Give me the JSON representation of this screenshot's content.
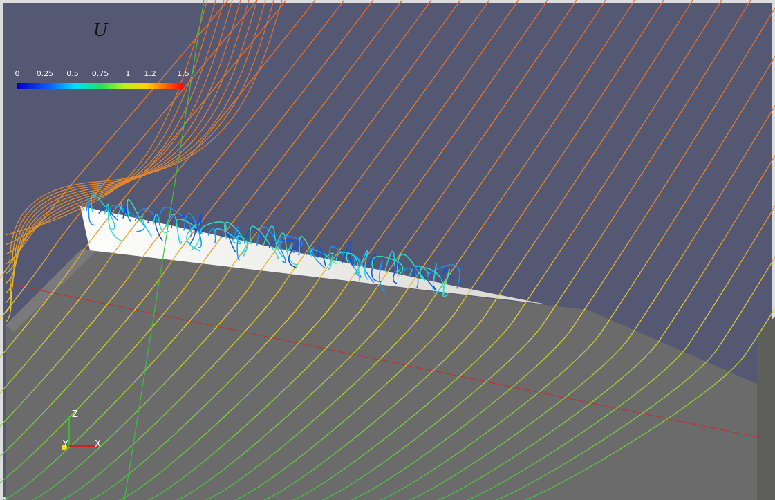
{
  "colorbar": {
    "title": "U",
    "ticks": [
      "0",
      "0.25",
      "0.5",
      "0.75",
      "1",
      "1.2",
      "1.5"
    ]
  },
  "axes": {
    "z": "Z",
    "y": "Y",
    "x": "X"
  }
}
